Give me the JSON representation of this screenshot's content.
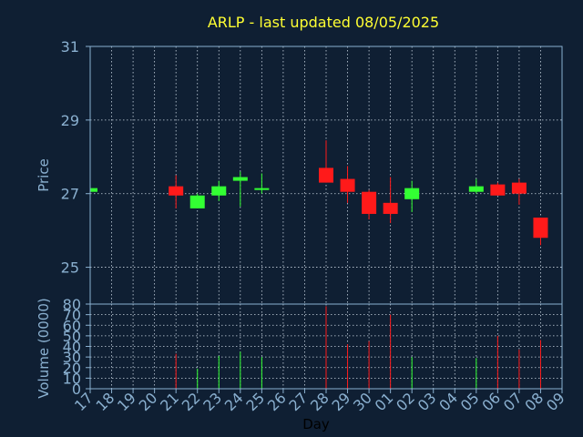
{
  "chart_data": {
    "type": "candlestick",
    "title": "ARLP - last updated 08/05/2025",
    "xlabel": "Day",
    "x_ticks": [
      "17",
      "18",
      "19",
      "20",
      "21",
      "22",
      "23",
      "24",
      "25",
      "26",
      "27",
      "28",
      "29",
      "30",
      "01",
      "02",
      "03",
      "04",
      "05",
      "06",
      "07",
      "08",
      "09"
    ],
    "price_panel": {
      "ylabel": "Price",
      "ylim": [
        24.0,
        31.0
      ],
      "y_ticks": [
        25,
        27,
        29,
        31
      ],
      "grid": true
    },
    "volume_panel": {
      "ylabel": "Volume (0000)",
      "ylim": [
        0,
        80
      ],
      "y_ticks": [
        0,
        10,
        20,
        30,
        40,
        50,
        60,
        70,
        80
      ],
      "grid": true
    },
    "candles": [
      {
        "day": "17",
        "open": 27.05,
        "high": 27.15,
        "low": 27.0,
        "close": 27.15,
        "volume": 0
      },
      {
        "day": "21",
        "open": 27.2,
        "high": 27.5,
        "low": 26.6,
        "close": 26.95,
        "volume": 33
      },
      {
        "day": "22",
        "open": 26.6,
        "high": 27.0,
        "low": 26.6,
        "close": 26.95,
        "volume": 19
      },
      {
        "day": "23",
        "open": 26.95,
        "high": 27.35,
        "low": 26.8,
        "close": 27.2,
        "volume": 31
      },
      {
        "day": "24",
        "open": 27.35,
        "high": 27.6,
        "low": 26.65,
        "close": 27.45,
        "volume": 35
      },
      {
        "day": "25",
        "open": 27.1,
        "high": 27.55,
        "low": 27.0,
        "close": 27.15,
        "volume": 30
      },
      {
        "day": "28",
        "open": 27.7,
        "high": 28.45,
        "low": 27.3,
        "close": 27.3,
        "volume": 78
      },
      {
        "day": "29",
        "open": 27.4,
        "high": 27.75,
        "low": 26.75,
        "close": 27.05,
        "volume": 42
      },
      {
        "day": "30",
        "open": 27.05,
        "high": 27.1,
        "low": 26.3,
        "close": 26.45,
        "volume": 45
      },
      {
        "day": "01",
        "open": 26.75,
        "high": 27.45,
        "low": 26.2,
        "close": 26.45,
        "volume": 70
      },
      {
        "day": "02",
        "open": 26.85,
        "high": 27.35,
        "low": 26.5,
        "close": 27.15,
        "volume": 30
      },
      {
        "day": "05",
        "open": 27.05,
        "high": 27.4,
        "low": 27.0,
        "close": 27.2,
        "volume": 29
      },
      {
        "day": "06",
        "open": 27.25,
        "high": 27.3,
        "low": 26.95,
        "close": 26.95,
        "volume": 50
      },
      {
        "day": "07",
        "open": 27.3,
        "high": 27.4,
        "low": 26.7,
        "close": 27.0,
        "volume": 37
      },
      {
        "day": "08",
        "open": 26.35,
        "high": 26.35,
        "low": 25.6,
        "close": 25.8,
        "volume": 46
      }
    ],
    "colors": {
      "background": "#0f1f33",
      "plot_background": "#0f1f33",
      "axis": "#8ab0d0",
      "tick_text": "#8ab0d0",
      "title": "#ffff33",
      "label": "#8ab0d0",
      "grid": "#c8d4e0",
      "up": "#33ff33",
      "down": "#ff1a1a",
      "xlabel": "#000000"
    }
  }
}
